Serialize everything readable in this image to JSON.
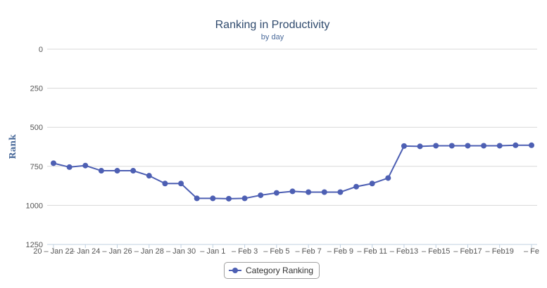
{
  "chart_data": {
    "type": "line",
    "title": "Ranking in Productivity",
    "subtitle": "by day",
    "ylabel": "Rank",
    "xlabel": "",
    "y_reversed": true,
    "ylim": [
      0,
      1250
    ],
    "yticks": [
      0,
      250,
      500,
      750,
      1000,
      1250
    ],
    "x_tick_labels": [
      "20 – Jan 22",
      "– Jan 24",
      "– Jan 26",
      "– Jan 28",
      "– Jan 30",
      "– Jan  1",
      "– Feb  3",
      "– Feb  5",
      "– Feb  7",
      "– Feb  9",
      "– Feb 11",
      "– Feb13",
      "– Feb15",
      "– Feb17",
      "– Feb19",
      "– Fe"
    ],
    "grid": true,
    "legend_position": "bottom-center",
    "series": [
      {
        "name": "Category Ranking",
        "color": "#4d5fb3",
        "values": [
          730,
          755,
          745,
          778,
          778,
          778,
          810,
          860,
          860,
          955,
          955,
          957,
          955,
          935,
          920,
          910,
          915,
          915,
          915,
          880,
          860,
          825,
          620,
          622,
          618,
          618,
          618,
          618,
          618,
          615,
          615
        ]
      }
    ]
  }
}
